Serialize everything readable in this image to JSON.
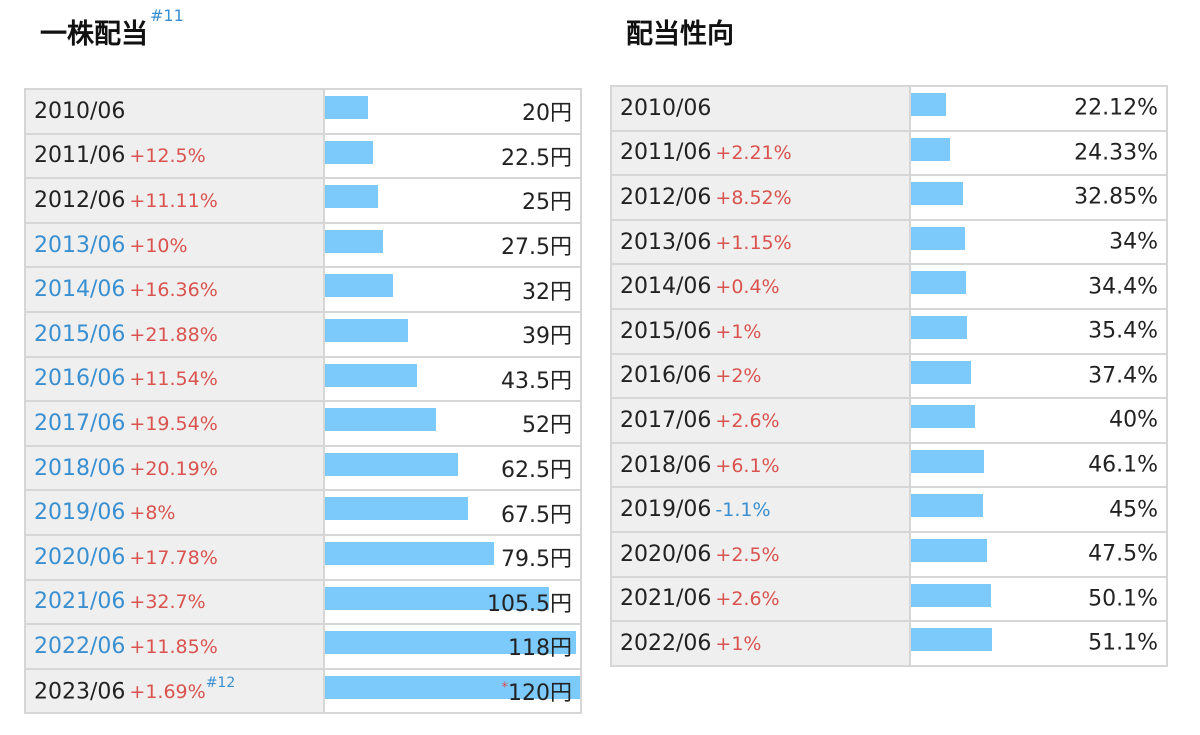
{
  "chart_data": [
    {
      "type": "bar",
      "title": "一株配当",
      "title_note": "#11",
      "unit": "円",
      "categories": [
        "2010/06",
        "2011/06",
        "2012/06",
        "2013/06",
        "2014/06",
        "2015/06",
        "2016/06",
        "2017/06",
        "2018/06",
        "2019/06",
        "2020/06",
        "2021/06",
        "2022/06",
        "2023/06"
      ],
      "values": [
        20,
        22.5,
        25,
        27.5,
        32,
        39,
        43.5,
        52,
        62.5,
        67.5,
        79.5,
        105.5,
        118,
        120
      ],
      "value_labels": [
        "20円",
        "22.5円",
        "25円",
        "27.5円",
        "32円",
        "39円",
        "43.5円",
        "52円",
        "62.5円",
        "67.5円",
        "79.5円",
        "105.5円",
        "118円",
        "120円"
      ],
      "changes": [
        "",
        "+12.5%",
        "+11.11%",
        "+10%",
        "+16.36%",
        "+21.88%",
        "+11.54%",
        "+19.54%",
        "+20.19%",
        "+8%",
        "+17.78%",
        "+32.7%",
        "+11.85%",
        "+1.69%"
      ],
      "category_highlight": [
        false,
        false,
        false,
        true,
        true,
        true,
        true,
        true,
        true,
        true,
        true,
        true,
        true,
        false
      ],
      "row_notes": [
        "",
        "",
        "",
        "",
        "",
        "",
        "",
        "",
        "",
        "",
        "",
        "",
        "",
        "#12"
      ],
      "value_marks": [
        "",
        "",
        "",
        "",
        "",
        "",
        "",
        "",
        "",
        "",
        "",
        "",
        "",
        "*"
      ],
      "xlim": [
        0,
        120
      ],
      "bar_color": "#7cc9fb"
    },
    {
      "type": "bar",
      "title": "配当性向",
      "unit": "%",
      "categories": [
        "2010/06",
        "2011/06",
        "2012/06",
        "2013/06",
        "2014/06",
        "2015/06",
        "2016/06",
        "2017/06",
        "2018/06",
        "2019/06",
        "2020/06",
        "2021/06",
        "2022/06"
      ],
      "values": [
        22.12,
        24.33,
        32.85,
        34,
        34.4,
        35.4,
        37.4,
        40,
        46.1,
        45,
        47.5,
        50.1,
        51.1
      ],
      "value_labels": [
        "22.12%",
        "24.33%",
        "32.85%",
        "34%",
        "34.4%",
        "35.4%",
        "37.4%",
        "40%",
        "46.1%",
        "45%",
        "47.5%",
        "50.1%",
        "51.1%"
      ],
      "changes": [
        "",
        "+2.21%",
        "+8.52%",
        "+1.15%",
        "+0.4%",
        "+1%",
        "+2%",
        "+2.6%",
        "+6.1%",
        "-1.1%",
        "+2.5%",
        "+2.6%",
        "+1%"
      ],
      "xlim": [
        0,
        160
      ],
      "bar_color": "#7cc9fb"
    }
  ],
  "colors": {
    "increase": "#d9534f",
    "decrease": "#3a8fd1",
    "highlight_year": "#3a8fd1",
    "bar": "#7cc9fb"
  }
}
